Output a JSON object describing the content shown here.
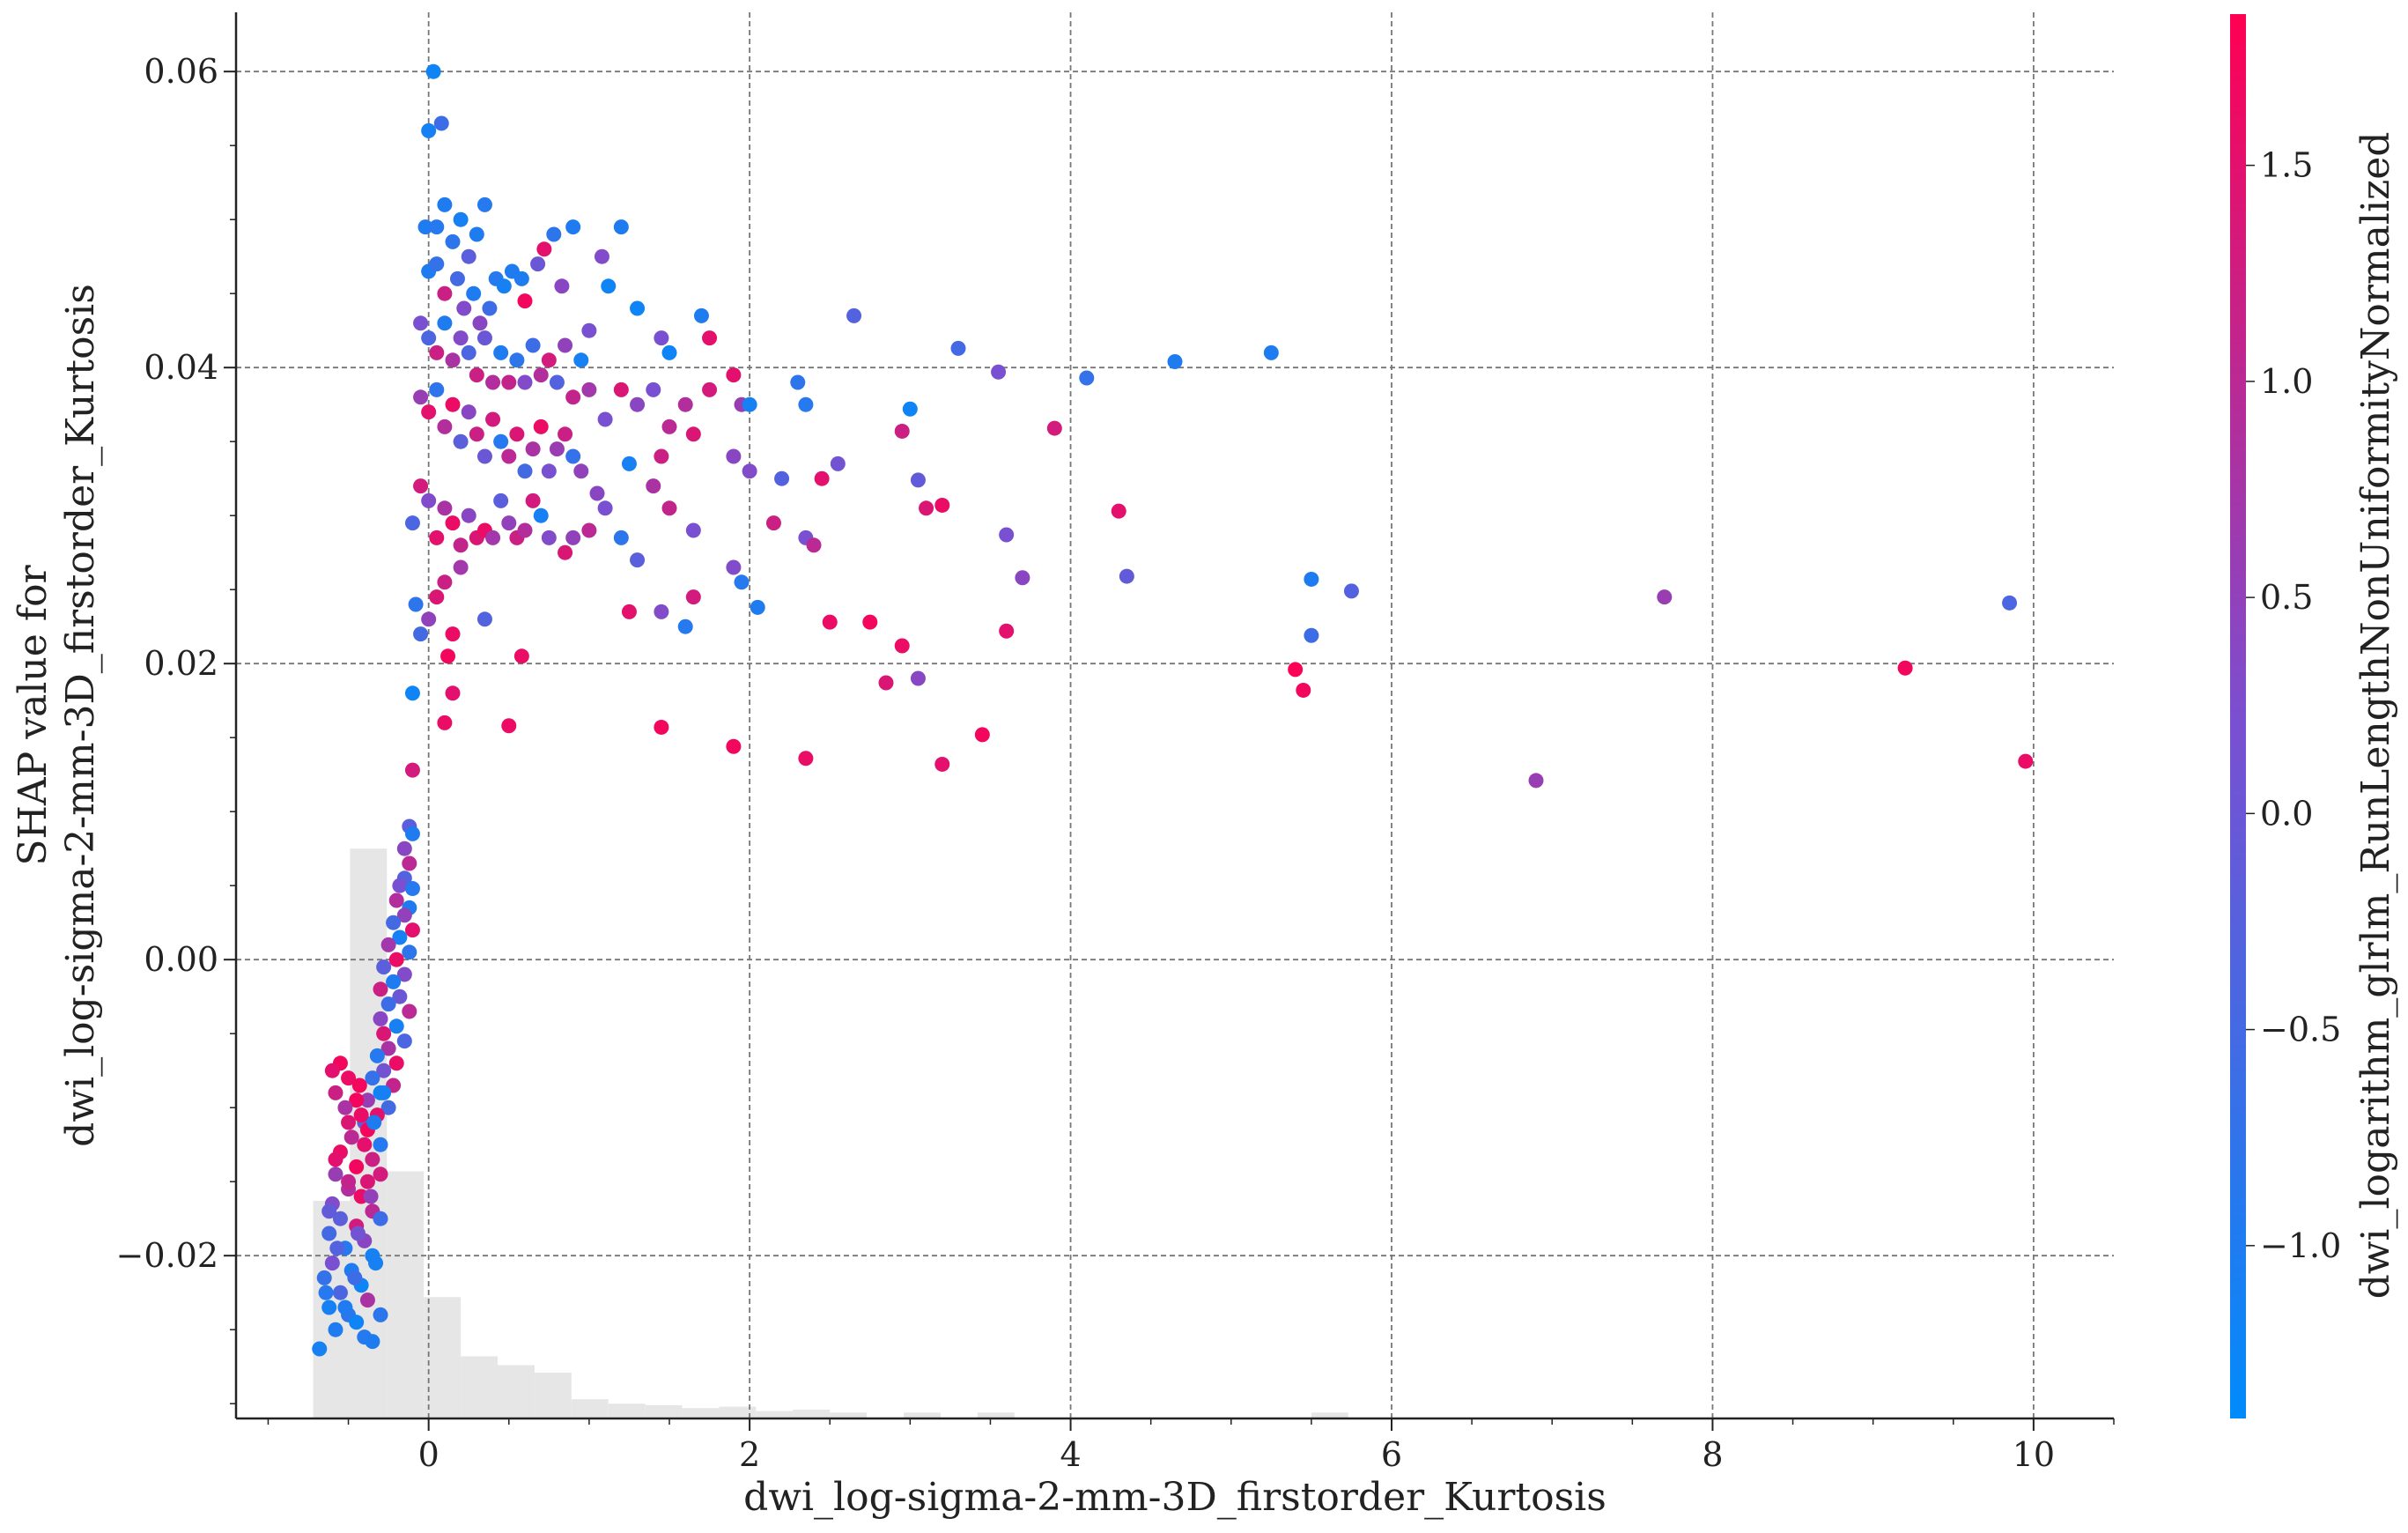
{
  "chart_data": {
    "type": "scatter",
    "xlabel": "dwi_log-sigma-2-mm-3D_firstorder_Kurtosis",
    "ylabel_lines": [
      "SHAP value for",
      "dwi_log-sigma-2-mm-3D_firstorder_Kurtosis"
    ],
    "xlim": [
      -1.2,
      10.5
    ],
    "ylim": [
      -0.031,
      0.064
    ],
    "x_ticks": [
      0,
      2,
      4,
      6,
      8,
      10
    ],
    "x_tick_labels": [
      "0",
      "2",
      "4",
      "6",
      "8",
      "10"
    ],
    "y_ticks": [
      -0.02,
      0.0,
      0.02,
      0.04,
      0.06
    ],
    "y_tick_labels": [
      "−0.02",
      "0.00",
      "0.02",
      "0.04",
      "0.06"
    ],
    "grid": true,
    "colorbar": {
      "label": "dwi_logarithm_glrlm_RunLengthNonUniformityNormalized",
      "range": [
        -1.4,
        1.85
      ],
      "ticks": [
        -1.0,
        -0.5,
        0.0,
        0.5,
        1.0,
        1.5
      ],
      "tick_labels": [
        "−1.0",
        "−0.5",
        "0.0",
        "0.5",
        "1.0",
        "1.5"
      ],
      "color_low": "#008bfb",
      "color_mid": "#7b4fd0",
      "color_high": "#ff0052"
    },
    "histogram": {
      "color": "#e6e6e6",
      "bins": [
        {
          "x0": -0.72,
          "x1": -0.49,
          "y": -0.0163
        },
        {
          "x0": -0.49,
          "x1": -0.26,
          "y": 0.0075
        },
        {
          "x0": -0.26,
          "x1": -0.03,
          "y": -0.0143
        },
        {
          "x0": -0.03,
          "x1": 0.2,
          "y": -0.0228
        },
        {
          "x0": 0.2,
          "x1": 0.43,
          "y": -0.0268
        },
        {
          "x0": 0.43,
          "x1": 0.66,
          "y": -0.0274
        },
        {
          "x0": 0.66,
          "x1": 0.89,
          "y": -0.0279
        },
        {
          "x0": 0.89,
          "x1": 1.12,
          "y": -0.0297
        },
        {
          "x0": 1.12,
          "x1": 1.35,
          "y": -0.03
        },
        {
          "x0": 1.35,
          "x1": 1.58,
          "y": -0.0301
        },
        {
          "x0": 1.58,
          "x1": 1.81,
          "y": -0.0303
        },
        {
          "x0": 1.81,
          "x1": 2.04,
          "y": -0.0302
        },
        {
          "x0": 2.04,
          "x1": 2.27,
          "y": -0.0305
        },
        {
          "x0": 2.27,
          "x1": 2.5,
          "y": -0.0304
        },
        {
          "x0": 2.5,
          "x1": 2.73,
          "y": -0.0306
        },
        {
          "x0": 2.96,
          "x1": 3.19,
          "y": -0.0306
        },
        {
          "x0": 3.42,
          "x1": 3.65,
          "y": -0.0306
        },
        {
          "x0": 5.5,
          "x1": 5.73,
          "y": -0.0306
        }
      ]
    },
    "points": [
      [
        0.03,
        0.06,
        -1.2
      ],
      [
        0.0,
        0.056,
        -1.1
      ],
      [
        0.08,
        0.0565,
        -0.6
      ],
      [
        -0.02,
        0.0495,
        -1.0
      ],
      [
        0.05,
        0.0495,
        -0.9
      ],
      [
        0.1,
        0.051,
        -1.0
      ],
      [
        0.15,
        0.0485,
        -0.8
      ],
      [
        0.2,
        0.05,
        -1.1
      ],
      [
        0.25,
        0.0475,
        -0.2
      ],
      [
        0.3,
        0.049,
        -1.0
      ],
      [
        0.35,
        0.051,
        -0.9
      ],
      [
        0.0,
        0.0465,
        -1.0
      ],
      [
        0.05,
        0.047,
        -0.7
      ],
      [
        0.1,
        0.045,
        1.2
      ],
      [
        0.18,
        0.046,
        -0.5
      ],
      [
        0.22,
        0.044,
        0.3
      ],
      [
        0.28,
        0.045,
        -1.0
      ],
      [
        0.32,
        0.043,
        0.4
      ],
      [
        0.38,
        0.044,
        -0.6
      ],
      [
        0.42,
        0.046,
        -0.9
      ],
      [
        0.47,
        0.0455,
        -1.1
      ],
      [
        0.52,
        0.0465,
        -1.0
      ],
      [
        0.58,
        0.046,
        -1.0
      ],
      [
        0.6,
        0.0445,
        1.7
      ],
      [
        0.68,
        0.047,
        0.0
      ],
      [
        0.72,
        0.048,
        1.5
      ],
      [
        0.78,
        0.049,
        -0.8
      ],
      [
        0.83,
        0.0455,
        0.4
      ],
      [
        0.9,
        0.0495,
        -1.0
      ],
      [
        1.0,
        0.0425,
        0.2
      ],
      [
        1.08,
        0.0475,
        0.3
      ],
      [
        1.12,
        0.0455,
        -1.2
      ],
      [
        1.2,
        0.0495,
        -1.0
      ],
      [
        1.3,
        0.044,
        -1.2
      ],
      [
        1.45,
        0.042,
        0.2
      ],
      [
        1.5,
        0.041,
        -1.2
      ],
      [
        1.7,
        0.0435,
        -1.0
      ],
      [
        1.75,
        0.042,
        1.5
      ],
      [
        2.65,
        0.0435,
        -0.3
      ],
      [
        -0.05,
        0.043,
        0.2
      ],
      [
        0.0,
        0.042,
        -0.4
      ],
      [
        0.05,
        0.041,
        1.2
      ],
      [
        0.1,
        0.043,
        -1.0
      ],
      [
        0.15,
        0.0405,
        0.8
      ],
      [
        0.2,
        0.042,
        0.3
      ],
      [
        0.25,
        0.041,
        -0.4
      ],
      [
        0.3,
        0.0395,
        1.2
      ],
      [
        0.35,
        0.042,
        0.0
      ],
      [
        0.4,
        0.039,
        0.9
      ],
      [
        0.45,
        0.041,
        -1.0
      ],
      [
        0.5,
        0.039,
        1.1
      ],
      [
        0.55,
        0.0405,
        -0.8
      ],
      [
        0.6,
        0.039,
        0.3
      ],
      [
        0.65,
        0.0415,
        -0.6
      ],
      [
        0.7,
        0.0395,
        0.9
      ],
      [
        0.75,
        0.0405,
        1.3
      ],
      [
        0.8,
        0.039,
        -0.3
      ],
      [
        0.85,
        0.0415,
        0.5
      ],
      [
        0.9,
        0.038,
        1.1
      ],
      [
        0.95,
        0.0405,
        -1.1
      ],
      [
        1.0,
        0.0385,
        0.7
      ],
      [
        1.1,
        0.0365,
        0.2
      ],
      [
        1.2,
        0.0385,
        1.4
      ],
      [
        1.3,
        0.0375,
        0.4
      ],
      [
        1.4,
        0.0385,
        0.2
      ],
      [
        1.5,
        0.036,
        1.0
      ],
      [
        1.6,
        0.0375,
        0.9
      ],
      [
        1.75,
        0.0385,
        1.3
      ],
      [
        1.9,
        0.0395,
        1.5
      ],
      [
        1.95,
        0.0375,
        0.6
      ],
      [
        2.0,
        0.0375,
        -1.1
      ],
      [
        2.3,
        0.039,
        -0.8
      ],
      [
        2.35,
        0.0375,
        -0.9
      ],
      [
        3.0,
        0.0372,
        -1.2
      ],
      [
        3.3,
        0.0413,
        -0.5
      ],
      [
        3.55,
        0.0397,
        0.2
      ],
      [
        4.1,
        0.0393,
        -0.7
      ],
      [
        4.65,
        0.0404,
        -1.0
      ],
      [
        5.25,
        0.041,
        -1.0
      ],
      [
        -0.05,
        0.038,
        0.6
      ],
      [
        0.0,
        0.037,
        1.5
      ],
      [
        0.05,
        0.0385,
        -0.8
      ],
      [
        0.1,
        0.036,
        0.9
      ],
      [
        0.15,
        0.0375,
        1.6
      ],
      [
        0.2,
        0.035,
        -0.2
      ],
      [
        0.25,
        0.037,
        0.4
      ],
      [
        0.3,
        0.0355,
        1.2
      ],
      [
        0.35,
        0.034,
        0.0
      ],
      [
        0.4,
        0.0365,
        1.3
      ],
      [
        0.45,
        0.035,
        -0.9
      ],
      [
        0.5,
        0.034,
        1.0
      ],
      [
        0.55,
        0.0355,
        1.4
      ],
      [
        0.6,
        0.033,
        -0.5
      ],
      [
        0.65,
        0.0345,
        0.8
      ],
      [
        0.7,
        0.036,
        1.6
      ],
      [
        0.75,
        0.033,
        0.2
      ],
      [
        0.8,
        0.0345,
        0.6
      ],
      [
        0.85,
        0.0355,
        1.2
      ],
      [
        0.9,
        0.034,
        -0.7
      ],
      [
        0.95,
        0.033,
        0.5
      ],
      [
        1.05,
        0.0315,
        0.4
      ],
      [
        1.1,
        0.0305,
        0.2
      ],
      [
        1.25,
        0.0335,
        -1.1
      ],
      [
        1.4,
        0.032,
        0.8
      ],
      [
        1.45,
        0.034,
        1.2
      ],
      [
        1.65,
        0.0355,
        1.4
      ],
      [
        1.9,
        0.034,
        0.4
      ],
      [
        2.0,
        0.033,
        0.3
      ],
      [
        2.2,
        0.0325,
        -0.3
      ],
      [
        2.45,
        0.0325,
        1.5
      ],
      [
        2.55,
        0.0335,
        0.1
      ],
      [
        2.95,
        0.0357,
        1.2
      ],
      [
        3.05,
        0.0324,
        -0.1
      ],
      [
        3.9,
        0.0359,
        1.3
      ],
      [
        -0.1,
        0.0295,
        -0.4
      ],
      [
        -0.05,
        0.032,
        1.3
      ],
      [
        0.0,
        0.031,
        0.3
      ],
      [
        0.05,
        0.0285,
        1.5
      ],
      [
        0.1,
        0.0305,
        0.8
      ],
      [
        0.15,
        0.0295,
        1.6
      ],
      [
        0.2,
        0.028,
        1.1
      ],
      [
        0.25,
        0.03,
        0.4
      ],
      [
        0.3,
        0.0285,
        1.4
      ],
      [
        0.35,
        0.029,
        1.6
      ],
      [
        0.4,
        0.0285,
        0.7
      ],
      [
        0.45,
        0.031,
        -0.2
      ],
      [
        0.5,
        0.0295,
        0.5
      ],
      [
        0.55,
        0.0285,
        1.2
      ],
      [
        0.6,
        0.029,
        0.9
      ],
      [
        0.65,
        0.031,
        1.3
      ],
      [
        0.7,
        0.03,
        -1.1
      ],
      [
        0.75,
        0.0285,
        0.3
      ],
      [
        0.85,
        0.0275,
        1.4
      ],
      [
        0.9,
        0.0285,
        0.5
      ],
      [
        1.0,
        0.029,
        1.0
      ],
      [
        1.2,
        0.0285,
        -0.8
      ],
      [
        1.3,
        0.027,
        -0.2
      ],
      [
        1.5,
        0.0305,
        1.1
      ],
      [
        1.65,
        0.029,
        0.2
      ],
      [
        1.9,
        0.0265,
        0.3
      ],
      [
        1.95,
        0.0255,
        -0.9
      ],
      [
        2.15,
        0.0295,
        1.2
      ],
      [
        2.35,
        0.0285,
        0.2
      ],
      [
        2.4,
        0.028,
        1.0
      ],
      [
        3.1,
        0.0305,
        1.4
      ],
      [
        3.2,
        0.0307,
        1.6
      ],
      [
        3.6,
        0.0287,
        0.2
      ],
      [
        3.7,
        0.0258,
        0.4
      ],
      [
        4.3,
        0.0303,
        1.5
      ],
      [
        4.35,
        0.0259,
        -0.1
      ],
      [
        5.5,
        0.0257,
        -1.0
      ],
      [
        5.75,
        0.0249,
        -0.3
      ],
      [
        7.7,
        0.0245,
        0.6
      ],
      [
        9.85,
        0.0241,
        -0.4
      ],
      [
        -0.08,
        0.024,
        -0.8
      ],
      [
        -0.05,
        0.022,
        -0.5
      ],
      [
        0.0,
        0.023,
        0.5
      ],
      [
        0.05,
        0.0245,
        1.4
      ],
      [
        0.1,
        0.0255,
        1.2
      ],
      [
        0.15,
        0.022,
        1.6
      ],
      [
        0.12,
        0.0205,
        1.7
      ],
      [
        0.2,
        0.0265,
        0.7
      ],
      [
        0.35,
        0.023,
        -0.3
      ],
      [
        0.58,
        0.0205,
        1.6
      ],
      [
        1.25,
        0.0235,
        1.5
      ],
      [
        1.45,
        0.0235,
        0.3
      ],
      [
        1.6,
        0.0225,
        -0.9
      ],
      [
        1.65,
        0.0245,
        1.3
      ],
      [
        2.05,
        0.0238,
        -1.0
      ],
      [
        2.5,
        0.0228,
        1.6
      ],
      [
        2.75,
        0.0228,
        1.7
      ],
      [
        2.85,
        0.0187,
        1.4
      ],
      [
        2.95,
        0.0212,
        1.6
      ],
      [
        3.05,
        0.019,
        0.4
      ],
      [
        3.6,
        0.0222,
        1.5
      ],
      [
        5.4,
        0.0196,
        1.8
      ],
      [
        5.45,
        0.0182,
        1.7
      ],
      [
        5.5,
        0.0219,
        -0.6
      ],
      [
        9.2,
        0.0197,
        1.7
      ],
      [
        -0.1,
        0.018,
        -1.2
      ],
      [
        0.1,
        0.016,
        1.6
      ],
      [
        0.15,
        0.018,
        1.5
      ],
      [
        0.5,
        0.0158,
        1.6
      ],
      [
        1.45,
        0.0157,
        1.7
      ],
      [
        1.9,
        0.0144,
        1.7
      ],
      [
        2.35,
        0.0136,
        1.6
      ],
      [
        3.2,
        0.0132,
        1.5
      ],
      [
        3.45,
        0.0152,
        1.7
      ],
      [
        6.9,
        0.0121,
        0.6
      ],
      [
        9.95,
        0.0134,
        1.6
      ],
      [
        -0.1,
        0.0128,
        1.3
      ],
      [
        -0.12,
        0.009,
        -0.2
      ],
      [
        -0.15,
        0.0075,
        0.4
      ],
      [
        -0.1,
        0.0085,
        -1.0
      ],
      [
        -0.12,
        0.0065,
        1.0
      ],
      [
        -0.15,
        0.0055,
        -0.3
      ],
      [
        -0.18,
        0.005,
        0.2
      ],
      [
        -0.1,
        0.0048,
        -0.9
      ],
      [
        -0.2,
        0.004,
        0.9
      ],
      [
        -0.12,
        0.0035,
        -1.0
      ],
      [
        -0.15,
        0.003,
        0.5
      ],
      [
        -0.22,
        0.0025,
        -0.5
      ],
      [
        -0.1,
        0.002,
        1.5
      ],
      [
        -0.18,
        0.0015,
        -1.1
      ],
      [
        -0.25,
        0.001,
        0.7
      ],
      [
        -0.12,
        0.0005,
        -0.8
      ],
      [
        -0.2,
        0.0,
        1.6
      ],
      [
        -0.28,
        -0.0005,
        -0.2
      ],
      [
        -0.15,
        -0.001,
        0.3
      ],
      [
        -0.22,
        -0.0015,
        -1.0
      ],
      [
        -0.3,
        -0.002,
        1.2
      ],
      [
        -0.18,
        -0.0025,
        0.0
      ],
      [
        -0.25,
        -0.003,
        -0.6
      ],
      [
        -0.12,
        -0.0035,
        1.0
      ],
      [
        -0.3,
        -0.004,
        0.4
      ],
      [
        -0.2,
        -0.0045,
        -1.1
      ],
      [
        -0.28,
        -0.005,
        1.4
      ],
      [
        -0.15,
        -0.0055,
        -0.4
      ],
      [
        -0.25,
        -0.006,
        0.8
      ],
      [
        -0.32,
        -0.0065,
        -0.9
      ],
      [
        -0.2,
        -0.007,
        1.6
      ],
      [
        -0.28,
        -0.0075,
        0.1
      ],
      [
        -0.35,
        -0.008,
        -0.7
      ],
      [
        -0.22,
        -0.0085,
        1.1
      ],
      [
        -0.3,
        -0.009,
        -1.2
      ],
      [
        -0.38,
        -0.0095,
        0.6
      ],
      [
        -0.25,
        -0.01,
        -0.5
      ],
      [
        -0.32,
        -0.0105,
        1.5
      ],
      [
        -0.4,
        -0.011,
        -0.1
      ],
      [
        -0.55,
        -0.007,
        1.7
      ],
      [
        -0.6,
        -0.0075,
        1.5
      ],
      [
        -0.5,
        -0.008,
        1.6
      ],
      [
        -0.58,
        -0.009,
        1.2
      ],
      [
        -0.45,
        -0.0095,
        1.7
      ],
      [
        -0.52,
        -0.01,
        0.8
      ],
      [
        -0.42,
        -0.0105,
        1.6
      ],
      [
        -0.5,
        -0.011,
        1.4
      ],
      [
        -0.38,
        -0.0115,
        1.7
      ],
      [
        -0.48,
        -0.012,
        1.0
      ],
      [
        -0.4,
        -0.0125,
        1.5
      ],
      [
        -0.55,
        -0.013,
        1.6
      ],
      [
        -0.35,
        -0.0135,
        1.2
      ],
      [
        -0.45,
        -0.014,
        1.7
      ],
      [
        -0.3,
        -0.0125,
        -0.9
      ],
      [
        -0.58,
        -0.0145,
        0.6
      ],
      [
        -0.38,
        -0.015,
        1.4
      ],
      [
        -0.5,
        -0.0155,
        0.9
      ],
      [
        -0.42,
        -0.016,
        1.6
      ],
      [
        -0.6,
        -0.0165,
        0.3
      ],
      [
        -0.35,
        -0.017,
        1.0
      ],
      [
        -0.55,
        -0.0175,
        -0.2
      ],
      [
        -0.45,
        -0.018,
        1.3
      ],
      [
        -0.62,
        -0.0185,
        -0.5
      ],
      [
        -0.4,
        -0.019,
        0.4
      ],
      [
        -0.52,
        -0.0195,
        -0.9
      ],
      [
        -0.35,
        -0.02,
        -1.1
      ],
      [
        -0.6,
        -0.0205,
        0.2
      ],
      [
        -0.48,
        -0.021,
        -1.0
      ],
      [
        -0.65,
        -0.0215,
        -0.7
      ],
      [
        -0.42,
        -0.022,
        -1.2
      ],
      [
        -0.55,
        -0.0225,
        -0.4
      ],
      [
        -0.38,
        -0.023,
        0.8
      ],
      [
        -0.62,
        -0.0235,
        -1.1
      ],
      [
        -0.5,
        -0.024,
        -0.8
      ],
      [
        -0.45,
        -0.0245,
        -1.2
      ],
      [
        -0.58,
        -0.025,
        -1.0
      ],
      [
        -0.4,
        -0.0255,
        -0.9
      ],
      [
        -0.68,
        -0.0263,
        -1.1
      ],
      [
        -0.35,
        -0.0258,
        -1.0
      ],
      [
        -0.52,
        -0.0235,
        -1.0
      ],
      [
        -0.3,
        -0.024,
        -0.8
      ],
      [
        -0.64,
        -0.0225,
        -0.9
      ],
      [
        -0.46,
        -0.0215,
        -0.6
      ],
      [
        -0.33,
        -0.0205,
        -1.1
      ],
      [
        -0.57,
        -0.0195,
        -0.3
      ],
      [
        -0.44,
        -0.0185,
        0.1
      ],
      [
        -0.3,
        -0.0175,
        -0.6
      ],
      [
        -0.62,
        -0.017,
        -0.1
      ],
      [
        -0.36,
        -0.016,
        0.5
      ],
      [
        -0.5,
        -0.015,
        1.1
      ],
      [
        -0.3,
        -0.0145,
        1.3
      ],
      [
        -0.58,
        -0.0135,
        1.5
      ],
      [
        -0.34,
        -0.011,
        -1.0
      ],
      [
        -0.28,
        -0.009,
        -1.1
      ],
      [
        -0.43,
        -0.0085,
        1.7
      ]
    ]
  }
}
